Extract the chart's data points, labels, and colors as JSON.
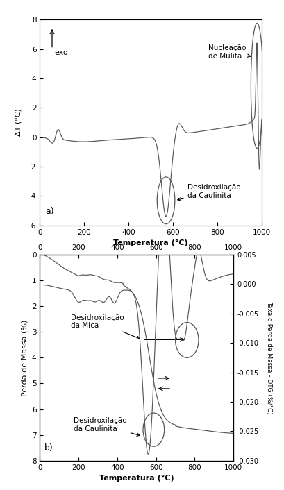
{
  "fig_width": 4.1,
  "fig_height": 7.06,
  "dpi": 100,
  "bg_color": "#ffffff",
  "line_color": "#555555",
  "subplot_a": {
    "xlim": [
      0,
      1000
    ],
    "ylim": [
      -6,
      8
    ],
    "xlabel": "Temperatura (°C)",
    "ylabel": "ΔT (°C)",
    "label": "a)",
    "yticks": [
      -6,
      -4,
      -2,
      0,
      2,
      4,
      6,
      8
    ],
    "xticks": [
      0,
      200,
      400,
      600,
      800,
      1000
    ],
    "exo_text": "exo",
    "annot1_text": "Nucleação\nde Mulita",
    "annot2_text": "Desidroxilação\nda Caulinita"
  },
  "subplot_b": {
    "xlim": [
      0,
      1000
    ],
    "ylim_left": [
      8,
      0
    ],
    "ylim_right": [
      -0.03,
      0.005
    ],
    "xlabel": "Temperatura (°C)",
    "ylabel_left": "Perda de Massa (%)",
    "ylabel_right": "Taxa d Perda de Massa - DTG (%/°C)",
    "label": "b)",
    "yticks_left": [
      0,
      1,
      2,
      3,
      4,
      5,
      6,
      7,
      8
    ],
    "yticks_right": [
      0.005,
      0.0,
      -0.005,
      -0.01,
      -0.015,
      -0.02,
      -0.025,
      -0.03
    ],
    "xticks": [
      0,
      200,
      400,
      600,
      800,
      1000
    ],
    "annot1_text": "Desidroxilação\nda Mica",
    "annot2_text": "Desidroxilação\nda Caulinita"
  }
}
